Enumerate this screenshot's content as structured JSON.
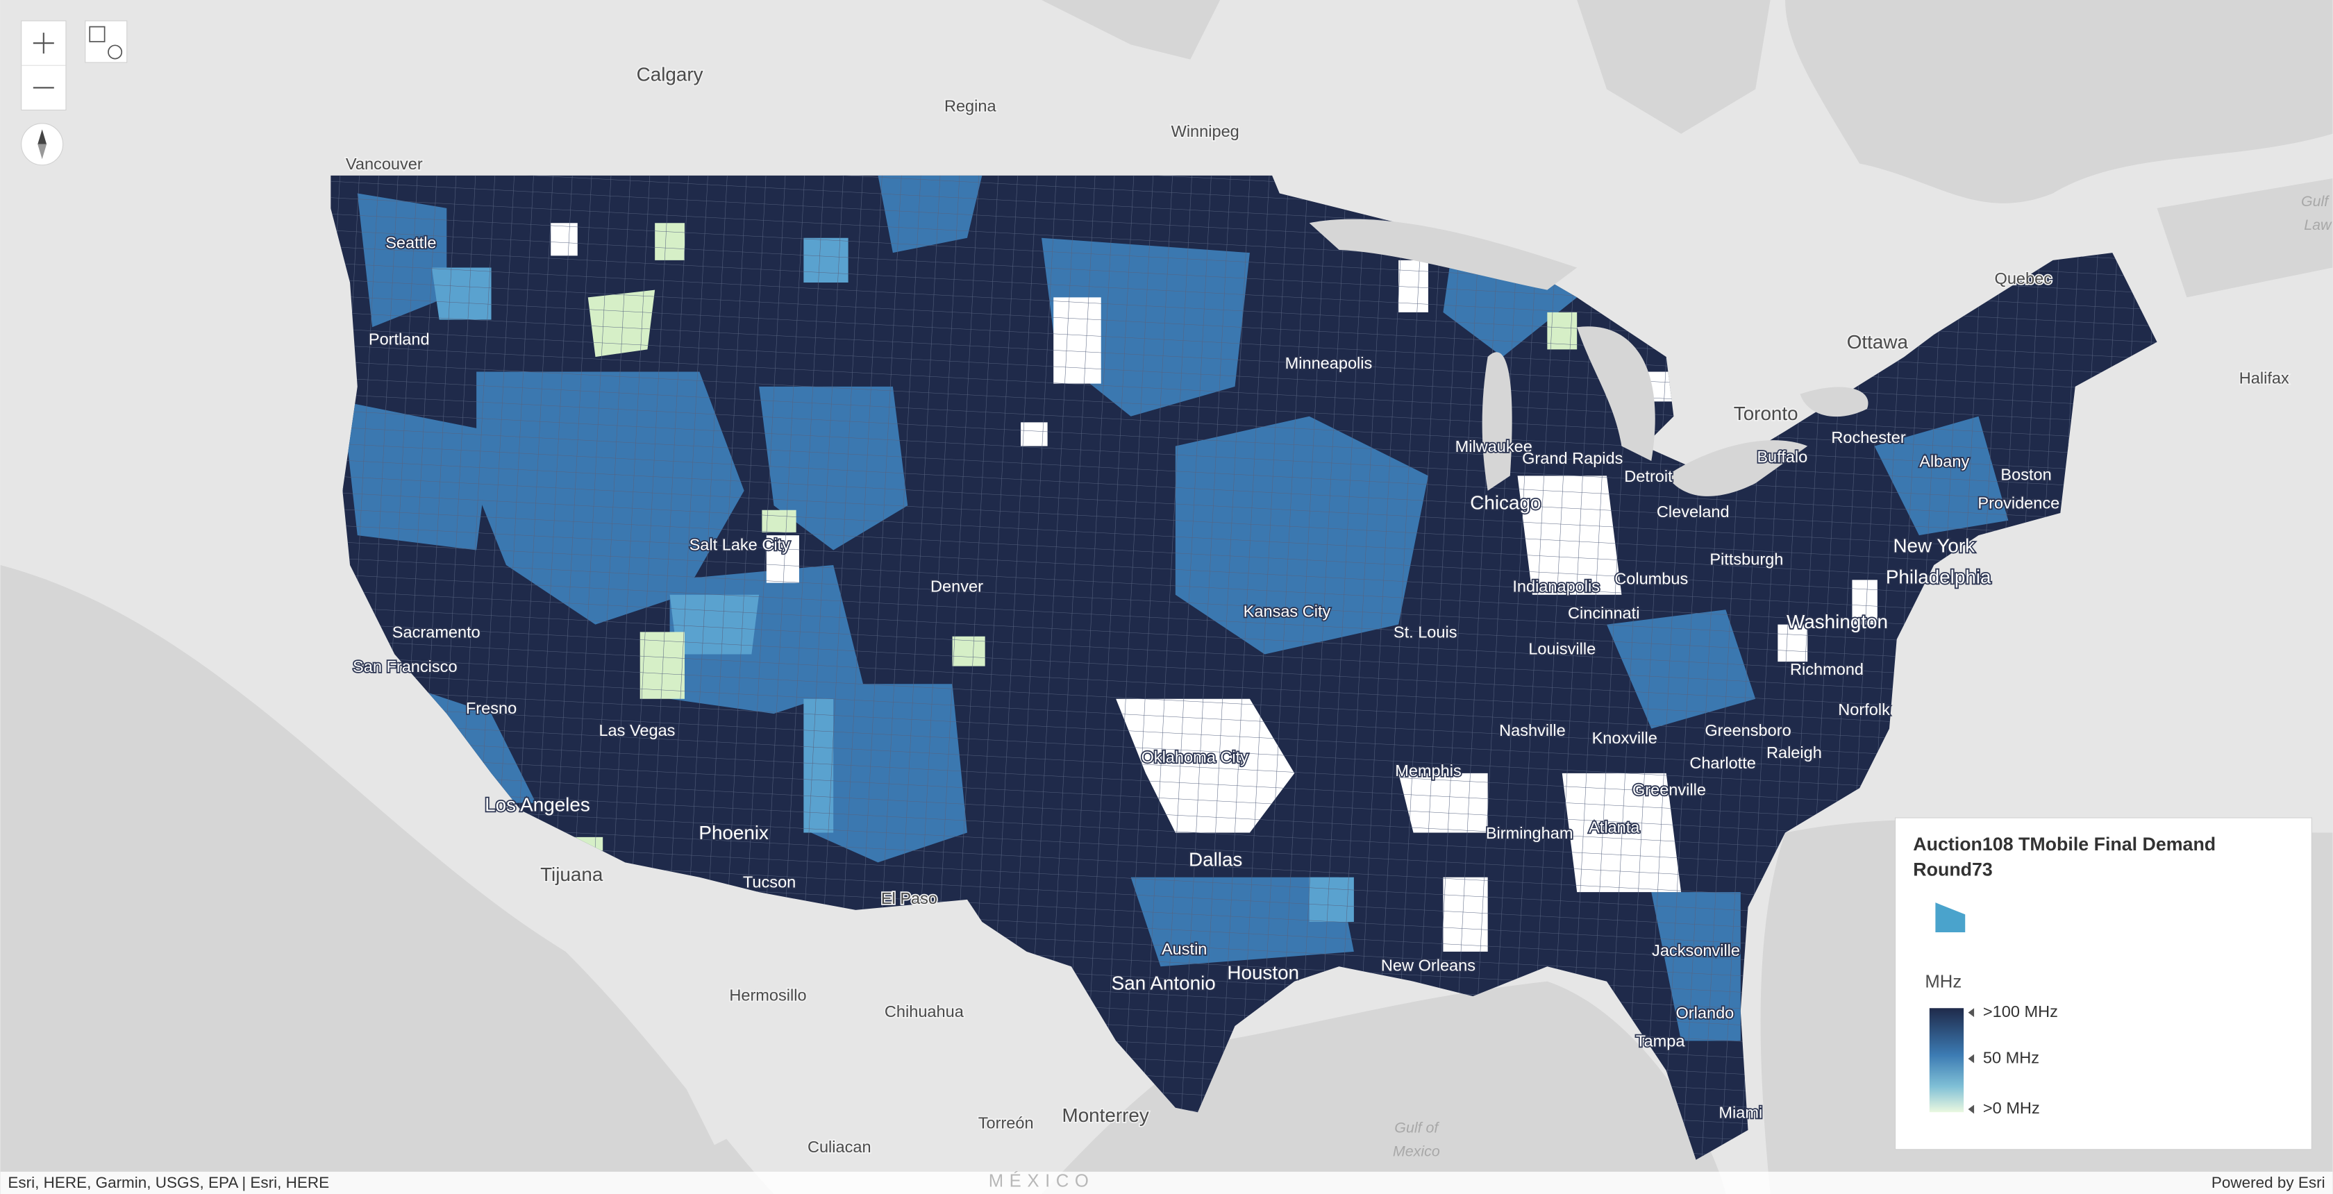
{
  "legend": {
    "title": "Auction108 TMobile Final Demand Round73",
    "field": "MHz",
    "labels": [
      ">100 MHz",
      "50 MHz",
      ">0 MHz"
    ]
  },
  "places": [
    "Calgary",
    "Regina",
    "Winnipeg",
    "Vancouver",
    "Seattle",
    "Portland",
    "Quebec",
    "Ottawa",
    "Halifax",
    "Toronto",
    "Rochester",
    "Buffalo",
    "Albany",
    "Boston",
    "Providence",
    "Minneapolis",
    "Milwaukee",
    "Grand Rapids",
    "Detroit",
    "Chicago",
    "Cleveland",
    "Pittsburgh",
    "New York",
    "Philadelphia",
    "Salt Lake City",
    "Denver",
    "Sacramento",
    "San Francisco",
    "Fresno",
    "Las Vegas",
    "Los Angeles",
    "Tijuana",
    "Phoenix",
    "Tucson",
    "El Paso",
    "Kansas City",
    "St. Louis",
    "Indianapolis",
    "Columbus",
    "Cincinnati",
    "Louisville",
    "Washington",
    "Richmond",
    "Norfolk",
    "Nashville",
    "Knoxville",
    "Greensboro",
    "Raleigh",
    "Charlotte",
    "Greenville",
    "Atlanta",
    "Birmingham",
    "Memphis",
    "Oklahoma City",
    "Dallas",
    "Austin",
    "Houston",
    "San Antonio",
    "New Orleans",
    "Jacksonville",
    "Orlando",
    "Tampa",
    "Miami",
    "Hermosillo",
    "Chihuahua",
    "Torreón",
    "Monterrey",
    "Culiacan"
  ],
  "water_labels": [
    "Gulf of",
    "Mexico",
    "Gulf",
    "Law"
  ],
  "country_labels": [
    "MÉXICO"
  ],
  "attribution": "Esri, HERE, Garmin, USGS, EPA | Esri, HERE",
  "powered_by": "Powered by Esri"
}
